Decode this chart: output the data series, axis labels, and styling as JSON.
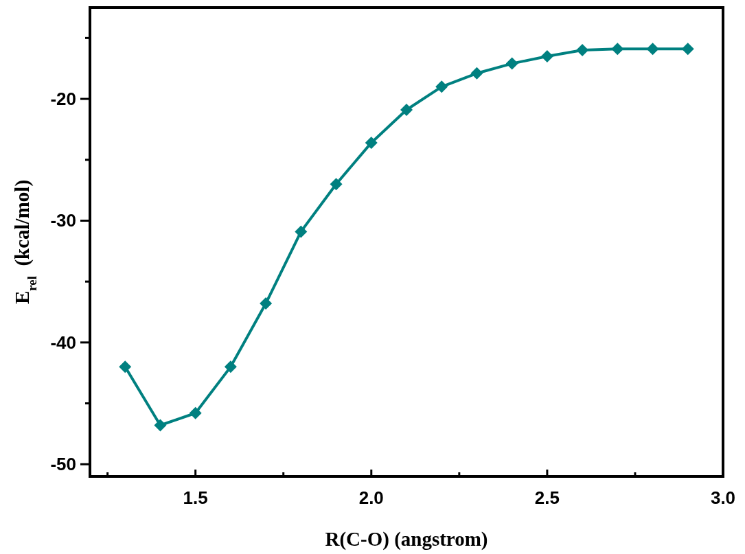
{
  "chart_data": {
    "type": "line",
    "xlabel": "R(C-O) (angstrom)",
    "ylabel": "E$_{rel}$  (kcal/mol)",
    "x": [
      1.3,
      1.4,
      1.5,
      1.6,
      1.7,
      1.8,
      1.9,
      2.0,
      2.1,
      2.2,
      2.3,
      2.4,
      2.5,
      2.6,
      2.7,
      2.8,
      2.9
    ],
    "series": [
      {
        "color": "#008080",
        "values": [
          -42.0,
          -46.8,
          -45.8,
          -42.0,
          -36.8,
          -30.9,
          -27.0,
          -23.6,
          -20.9,
          -19.0,
          -17.9,
          -17.1,
          -16.5,
          -16.0,
          -15.9,
          -15.9,
          -15.9
        ]
      }
    ],
    "xlim": [
      1.2,
      3.0
    ],
    "ylim": [
      -51,
      -12.5
    ],
    "xticks": [
      {
        "value": 1.25,
        "label": null
      },
      {
        "value": 1.5,
        "label": "1.5"
      },
      {
        "value": 1.75,
        "label": null
      },
      {
        "value": 2.0,
        "label": "2.0"
      },
      {
        "value": 2.25,
        "label": null
      },
      {
        "value": 2.5,
        "label": "2.5"
      },
      {
        "value": 2.75,
        "label": null
      },
      {
        "value": 3.0,
        "label": "3.0"
      }
    ],
    "yticks": [
      -50,
      {
        "value": -45,
        "label": null
      },
      -40,
      {
        "value": -35,
        "label": null
      },
      -30,
      {
        "value": -25,
        "label": null
      },
      -20,
      {
        "value": -15,
        "label": null
      }
    ],
    "marker": "diamond",
    "line_style": "solid",
    "grid": false
  }
}
